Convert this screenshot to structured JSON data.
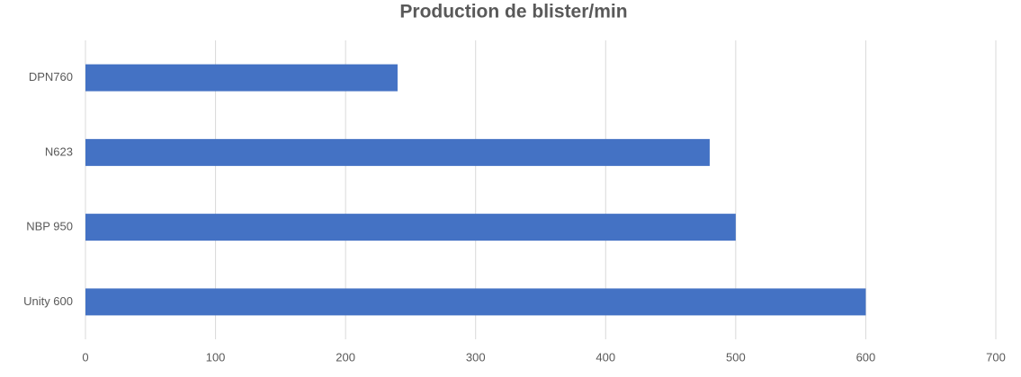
{
  "chart_data": {
    "type": "bar",
    "orientation": "horizontal",
    "title": "Production de blister/min",
    "categories": [
      "DPN760",
      "N623",
      "NBP 950",
      "Unity 600"
    ],
    "values": [
      240,
      480,
      500,
      600
    ],
    "color": "#4472c4",
    "xlim": [
      0,
      700
    ],
    "xticks": [
      0,
      100,
      200,
      300,
      400,
      500,
      600,
      700
    ],
    "grid": true
  }
}
